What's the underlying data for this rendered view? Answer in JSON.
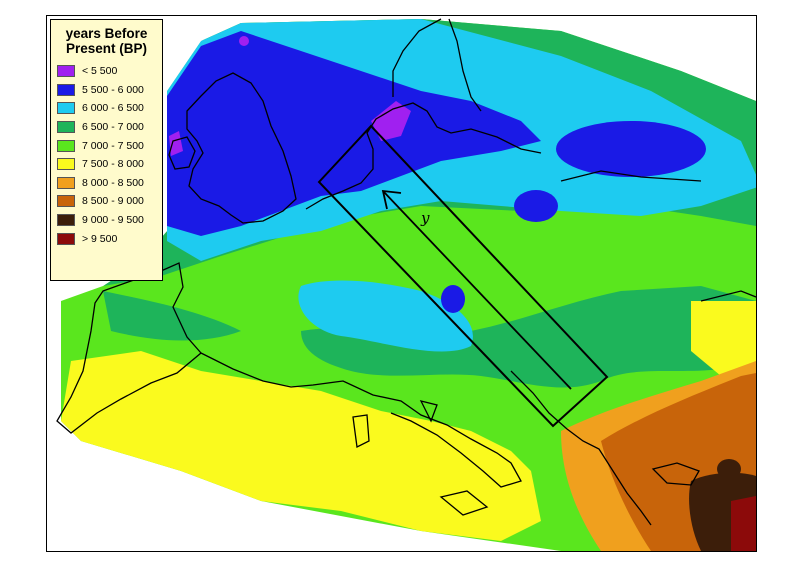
{
  "legend": {
    "title_line1": "years Before",
    "title_line2": "Present (BP)",
    "items": [
      {
        "label": "< 5 500",
        "color": "#a020f0"
      },
      {
        "label": "5 500 - 6 000",
        "color": "#1a1ae6"
      },
      {
        "label": "6 000 - 6 500",
        "color": "#1ecbf0"
      },
      {
        "label": "6 500 - 7 000",
        "color": "#1eb45a"
      },
      {
        "label": "7 000 - 7 500",
        "color": "#5ae61e"
      },
      {
        "label": "7 500 - 8 000",
        "color": "#fafa1e"
      },
      {
        "label": "8 000 - 8 500",
        "color": "#f0a01e"
      },
      {
        "label": "8 500 - 9 000",
        "color": "#c8640a"
      },
      {
        "label": "9 000 - 9 500",
        "color": "#3c1e0a"
      },
      {
        "label": "> 9 500",
        "color": "#8c0a0a"
      }
    ]
  },
  "map": {
    "axis_label": "y",
    "line_color": "#000000",
    "sea_color": "#ffffff"
  }
}
